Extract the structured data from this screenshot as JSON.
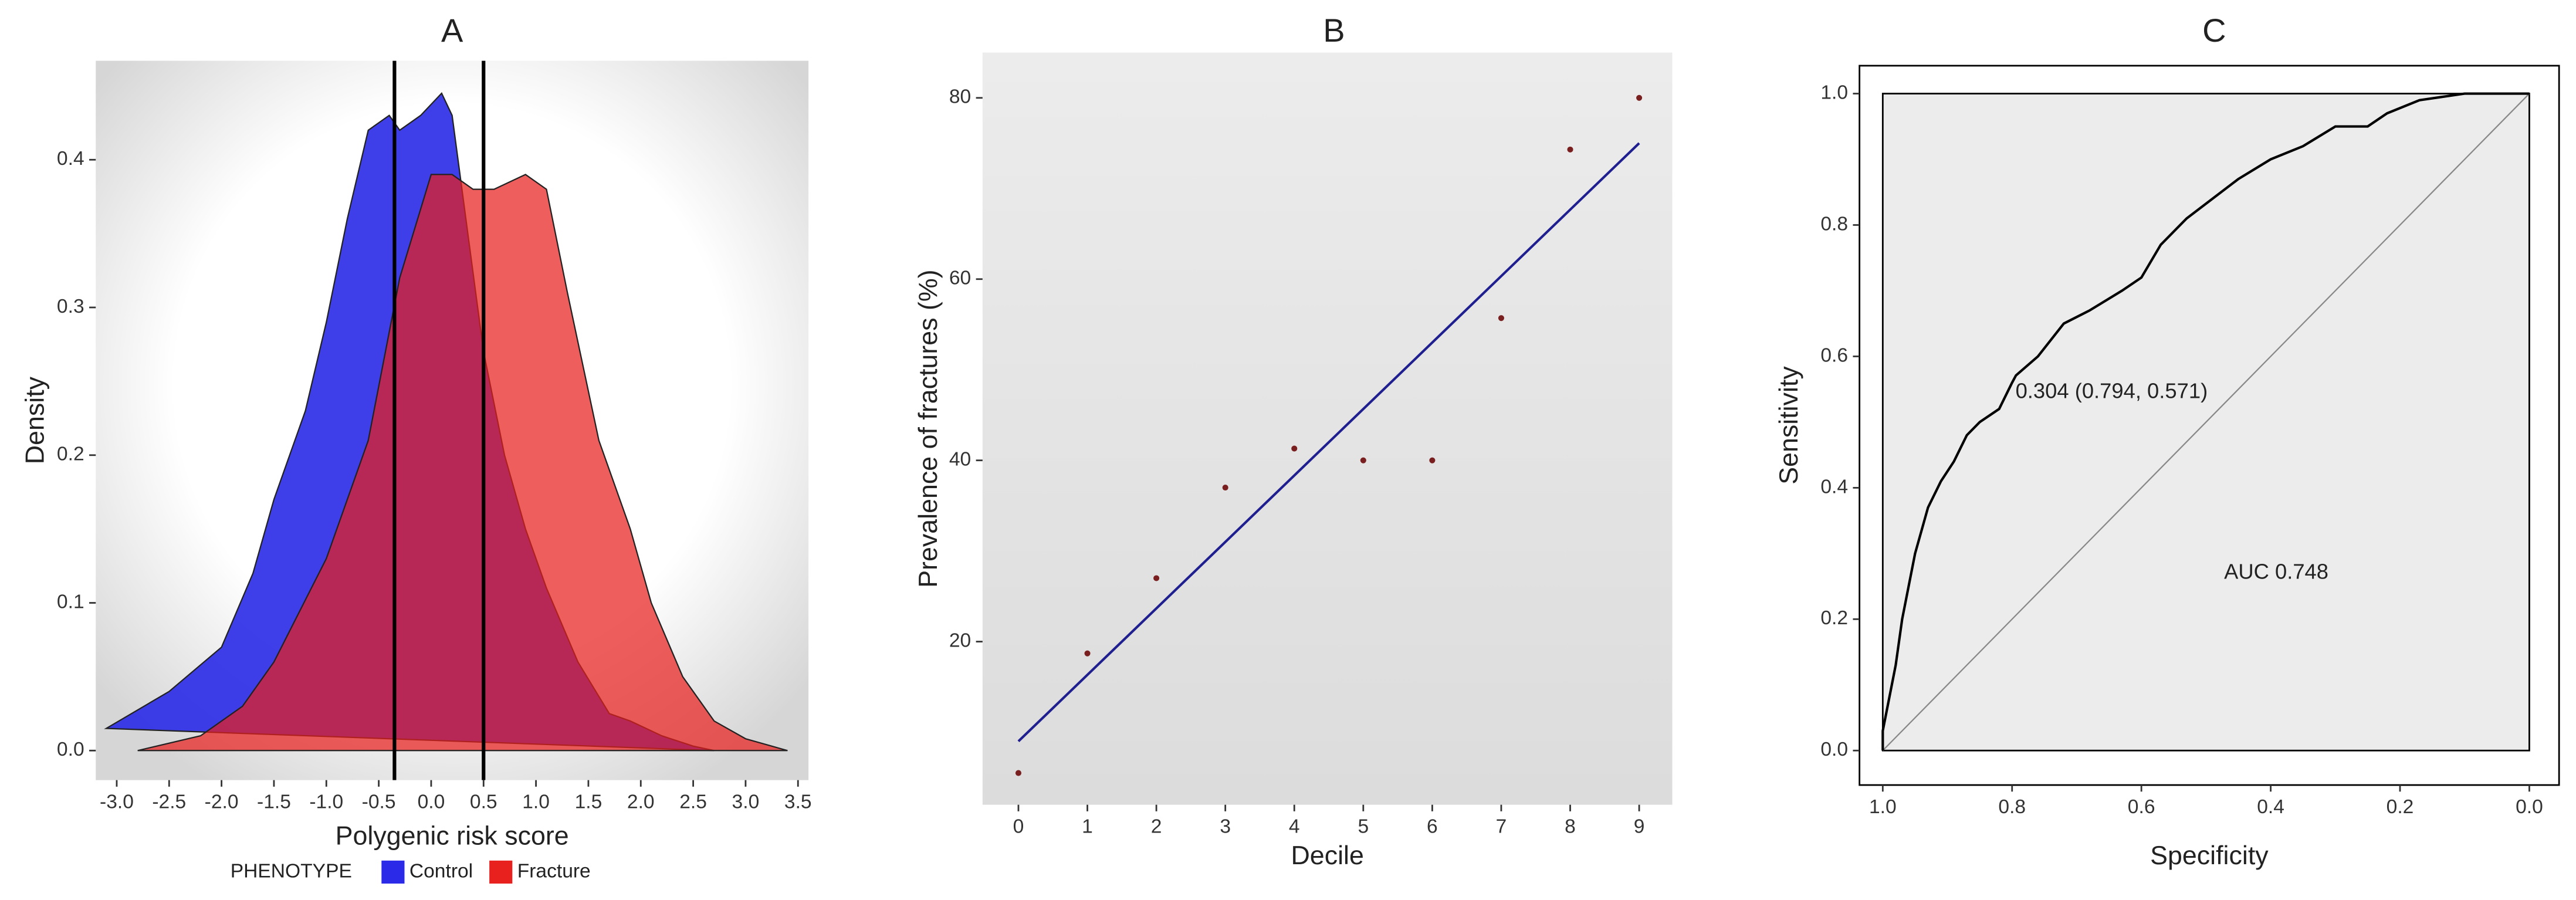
{
  "chart_data": [
    {
      "type": "area",
      "title": "A",
      "x_label": "Polygenic risk score",
      "y_label": "Density",
      "legend": "bottom",
      "legend_title": "PHENOTYPE",
      "grid": false,
      "xlim": [
        -3.2,
        3.6
      ],
      "ylim": [
        -0.02,
        0.467
      ],
      "xticks": [
        {
          "value": -3,
          "label": "-3.0"
        },
        -2.5,
        {
          "value": -2,
          "label": "-2.0"
        },
        -1.5,
        {
          "value": -1,
          "label": "-1.0"
        },
        -0.5,
        {
          "value": 0,
          "label": "0.0"
        },
        0.5,
        {
          "value": 1,
          "label": "1.0"
        },
        1.5,
        {
          "value": 2,
          "label": "2.0"
        },
        2.5,
        {
          "value": 3,
          "label": "3.0"
        },
        3.5
      ],
      "yticks": [
        {
          "value": 0,
          "label": "0.0"
        },
        0.1,
        0.2,
        0.3,
        0.4
      ],
      "vlines": [
        -0.35,
        0.5
      ],
      "series": [
        {
          "name": "Control",
          "color": "#2a2ae8",
          "x": [
            -3.1,
            -2.5,
            -2.0,
            -1.7,
            -1.5,
            -1.2,
            -1.0,
            -0.8,
            -0.6,
            -0.4,
            -0.3,
            -0.1,
            0.1,
            0.2,
            0.35,
            0.5,
            0.7,
            0.9,
            1.1,
            1.4,
            1.7,
            1.9,
            2.2,
            2.5,
            2.7
          ],
          "values": [
            0.015,
            0.04,
            0.07,
            0.12,
            0.17,
            0.23,
            0.29,
            0.36,
            0.42,
            0.43,
            0.42,
            0.43,
            0.445,
            0.43,
            0.35,
            0.27,
            0.2,
            0.15,
            0.11,
            0.06,
            0.025,
            0.02,
            0.01,
            0.003,
            0
          ]
        },
        {
          "name": "Fracture",
          "color": "#e8201e",
          "x": [
            -2.8,
            -2.2,
            -1.8,
            -1.5,
            -1.0,
            -0.6,
            -0.3,
            0.0,
            0.2,
            0.4,
            0.6,
            0.9,
            1.1,
            1.3,
            1.6,
            1.9,
            2.1,
            2.4,
            2.7,
            3.0,
            3.3,
            3.4
          ],
          "values": [
            0,
            0.01,
            0.03,
            0.06,
            0.13,
            0.21,
            0.32,
            0.39,
            0.39,
            0.38,
            0.38,
            0.39,
            0.38,
            0.31,
            0.21,
            0.15,
            0.1,
            0.05,
            0.02,
            0.008,
            0.002,
            0
          ]
        }
      ]
    },
    {
      "type": "scatter",
      "title": "B",
      "x_label": "Decile",
      "y_label": "Prevalence of fractures (%)",
      "grid": false,
      "xlim": [
        -0.52,
        9.48
      ],
      "ylim": [
        2,
        85
      ],
      "xticks": [
        0,
        1,
        2,
        3,
        4,
        5,
        6,
        7,
        8,
        9
      ],
      "yticks": [
        20,
        40,
        60,
        80
      ],
      "x": [
        0,
        1,
        2,
        3,
        4,
        5,
        6,
        7,
        8,
        9
      ],
      "values": [
        5.5,
        18.7,
        27,
        37,
        41.3,
        40,
        40,
        55.7,
        74.3,
        80
      ],
      "color": "#7a1f1f",
      "fit": {
        "x": [
          0,
          9
        ],
        "values": [
          9,
          75
        ],
        "color": "#1f1f8f"
      }
    },
    {
      "type": "line",
      "title": "C",
      "x_label": "Specificity",
      "y_label": "Sensitivity",
      "grid": false,
      "xlim": [
        1.036,
        -0.046
      ],
      "ylim": [
        -0.0525,
        1.0425
      ],
      "xticks": [
        {
          "value": 1,
          "label": "1.0"
        },
        0.8,
        0.6,
        0.4,
        0.2,
        {
          "value": 0,
          "label": "0.0"
        }
      ],
      "yticks": [
        {
          "value": 0,
          "label": "0.0"
        },
        0.2,
        0.4,
        0.6,
        0.8,
        {
          "value": 1,
          "label": "1.0"
        }
      ],
      "x": [
        1.0,
        1.0,
        0.99,
        0.98,
        0.97,
        0.96,
        0.95,
        0.93,
        0.91,
        0.89,
        0.87,
        0.85,
        0.82,
        0.8,
        0.794,
        0.76,
        0.72,
        0.68,
        0.63,
        0.6,
        0.57,
        0.53,
        0.49,
        0.45,
        0.4,
        0.35,
        0.3,
        0.25,
        0.22,
        0.17,
        0.1,
        0.0
      ],
      "values": [
        0,
        0.03,
        0.08,
        0.13,
        0.2,
        0.25,
        0.3,
        0.37,
        0.41,
        0.44,
        0.48,
        0.5,
        0.52,
        0.56,
        0.571,
        0.6,
        0.65,
        0.67,
        0.7,
        0.72,
        0.77,
        0.81,
        0.84,
        0.87,
        0.9,
        0.92,
        0.95,
        0.95,
        0.97,
        0.99,
        1.0,
        1.0
      ],
      "color": "#000000",
      "annotations": [
        "0.304 (0.794, 0.571)",
        "AUC 0.748"
      ]
    }
  ]
}
